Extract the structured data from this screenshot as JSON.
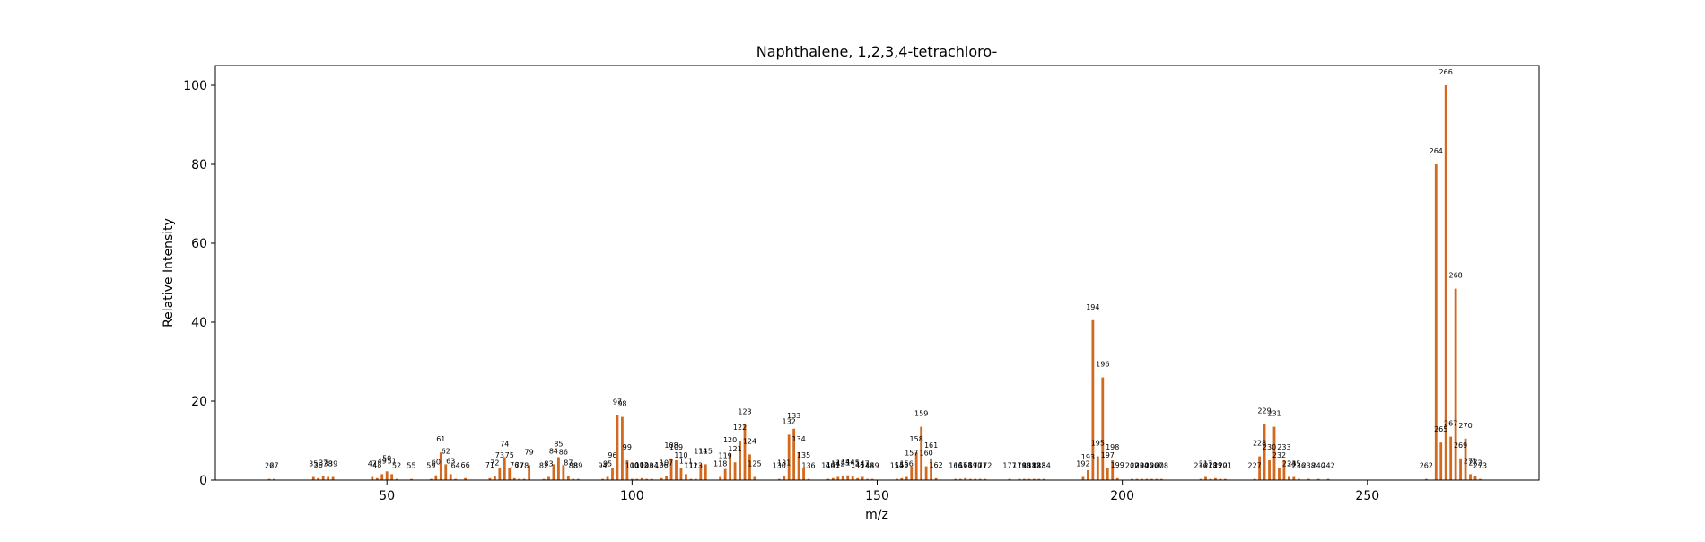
{
  "chart_data": {
    "type": "bar",
    "title": "Naphthalene, 1,2,3,4-tetrachloro-",
    "xlabel": "m/z",
    "ylabel": "Relative Intensity",
    "xlim": [
      15,
      285
    ],
    "ylim": [
      0,
      105
    ],
    "xticks": [
      50,
      100,
      150,
      200,
      250
    ],
    "yticks": [
      0,
      20,
      40,
      60,
      80,
      100
    ],
    "grid": false,
    "bar_color": "#d2691e",
    "series": [
      {
        "values": [
          {
            "x": 26,
            "y": 0.3,
            "label": "26"
          },
          {
            "x": 27,
            "y": 0.3,
            "label": "27"
          },
          {
            "x": 35,
            "y": 0.8,
            "label": "35"
          },
          {
            "x": 36,
            "y": 0.5,
            "label": "36"
          },
          {
            "x": 37,
            "y": 1.0,
            "label": "37"
          },
          {
            "x": 38,
            "y": 0.8,
            "label": "38"
          },
          {
            "x": 39,
            "y": 0.8,
            "label": "39"
          },
          {
            "x": 47,
            "y": 0.8,
            "label": "47"
          },
          {
            "x": 48,
            "y": 0.5,
            "label": "48"
          },
          {
            "x": 49,
            "y": 1.5,
            "label": "49"
          },
          {
            "x": 50,
            "y": 2.2,
            "label": "50"
          },
          {
            "x": 51,
            "y": 1.5,
            "label": "51"
          },
          {
            "x": 52,
            "y": 0.3,
            "label": "52"
          },
          {
            "x": 55,
            "y": 0.3,
            "label": "55"
          },
          {
            "x": 59,
            "y": 0.3,
            "label": "59"
          },
          {
            "x": 60,
            "y": 1.2,
            "label": "60"
          },
          {
            "x": 61,
            "y": 7.0,
            "label": "61"
          },
          {
            "x": 62,
            "y": 4.0,
            "label": "62"
          },
          {
            "x": 63,
            "y": 1.5,
            "label": "63"
          },
          {
            "x": 64,
            "y": 0.3,
            "label": "64"
          },
          {
            "x": 66,
            "y": 0.5,
            "label": "66"
          },
          {
            "x": 71,
            "y": 0.5,
            "label": "71"
          },
          {
            "x": 72,
            "y": 1.0,
            "label": "72"
          },
          {
            "x": 73,
            "y": 3.0,
            "label": "73"
          },
          {
            "x": 74,
            "y": 5.8,
            "label": "74"
          },
          {
            "x": 75,
            "y": 3.0,
            "label": "75"
          },
          {
            "x": 76,
            "y": 0.5,
            "label": "76"
          },
          {
            "x": 77,
            "y": 0.3,
            "label": "77"
          },
          {
            "x": 78,
            "y": 0.3,
            "label": "78"
          },
          {
            "x": 79,
            "y": 3.8,
            "label": "79"
          },
          {
            "x": 82,
            "y": 0.3,
            "label": "82"
          },
          {
            "x": 83,
            "y": 0.8,
            "label": "83"
          },
          {
            "x": 84,
            "y": 4.0,
            "label": "84"
          },
          {
            "x": 85,
            "y": 5.8,
            "label": "85"
          },
          {
            "x": 86,
            "y": 3.8,
            "label": "86"
          },
          {
            "x": 87,
            "y": 1.0,
            "label": "87"
          },
          {
            "x": 88,
            "y": 0.3,
            "label": "88"
          },
          {
            "x": 89,
            "y": 0.3,
            "label": "89"
          },
          {
            "x": 94,
            "y": 0.3,
            "label": "94"
          },
          {
            "x": 95,
            "y": 0.8,
            "label": "95"
          },
          {
            "x": 96,
            "y": 3.0,
            "label": "96"
          },
          {
            "x": 97,
            "y": 16.5,
            "label": "97"
          },
          {
            "x": 98,
            "y": 16.0,
            "label": "98"
          },
          {
            "x": 99,
            "y": 5.0,
            "label": "99"
          },
          {
            "x": 100,
            "y": 0.3,
            "label": "100"
          },
          {
            "x": 101,
            "y": 0.3,
            "label": "101"
          },
          {
            "x": 102,
            "y": 0.5,
            "label": "102"
          },
          {
            "x": 103,
            "y": 0.3,
            "label": "103"
          },
          {
            "x": 104,
            "y": 0.3,
            "label": "104"
          },
          {
            "x": 106,
            "y": 0.5,
            "label": "106"
          },
          {
            "x": 107,
            "y": 1.0,
            "label": "107"
          },
          {
            "x": 108,
            "y": 5.5,
            "label": "108"
          },
          {
            "x": 109,
            "y": 5.0,
            "label": "109"
          },
          {
            "x": 110,
            "y": 3.0,
            "label": "110"
          },
          {
            "x": 111,
            "y": 1.5,
            "label": "111"
          },
          {
            "x": 112,
            "y": 0.3,
            "label": "112"
          },
          {
            "x": 113,
            "y": 0.3,
            "label": "113"
          },
          {
            "x": 114,
            "y": 4.0,
            "label": "114"
          },
          {
            "x": 115,
            "y": 4.0,
            "label": "115"
          },
          {
            "x": 118,
            "y": 0.8,
            "label": "118"
          },
          {
            "x": 119,
            "y": 2.8,
            "label": "119"
          },
          {
            "x": 120,
            "y": 6.8,
            "label": "120"
          },
          {
            "x": 121,
            "y": 4.5,
            "label": "121"
          },
          {
            "x": 122,
            "y": 10.0,
            "label": "122"
          },
          {
            "x": 123,
            "y": 14.0,
            "label": "123"
          },
          {
            "x": 124,
            "y": 6.5,
            "label": "124"
          },
          {
            "x": 125,
            "y": 0.8,
            "label": "125"
          },
          {
            "x": 130,
            "y": 0.3,
            "label": "130"
          },
          {
            "x": 131,
            "y": 1.0,
            "label": "131"
          },
          {
            "x": 132,
            "y": 11.5,
            "label": "132"
          },
          {
            "x": 133,
            "y": 13.0,
            "label": "133"
          },
          {
            "x": 134,
            "y": 7.0,
            "label": "134"
          },
          {
            "x": 135,
            "y": 3.0,
            "label": "135"
          },
          {
            "x": 136,
            "y": 0.3,
            "label": "136"
          },
          {
            "x": 140,
            "y": 0.3,
            "label": "140"
          },
          {
            "x": 141,
            "y": 0.5,
            "label": "141"
          },
          {
            "x": 142,
            "y": 0.8,
            "label": "142"
          },
          {
            "x": 143,
            "y": 1.0,
            "label": "143"
          },
          {
            "x": 144,
            "y": 1.2,
            "label": "144"
          },
          {
            "x": 145,
            "y": 1.0,
            "label": "145"
          },
          {
            "x": 146,
            "y": 0.5,
            "label": "146"
          },
          {
            "x": 147,
            "y": 0.8,
            "label": "147"
          },
          {
            "x": 148,
            "y": 0.3,
            "label": "148"
          },
          {
            "x": 149,
            "y": 0.3,
            "label": "149"
          },
          {
            "x": 154,
            "y": 0.3,
            "label": "154"
          },
          {
            "x": 155,
            "y": 0.5,
            "label": "155"
          },
          {
            "x": 156,
            "y": 0.8,
            "label": "156"
          },
          {
            "x": 157,
            "y": 3.5,
            "label": "157"
          },
          {
            "x": 158,
            "y": 7.0,
            "label": "158"
          },
          {
            "x": 159,
            "y": 13.5,
            "label": "159"
          },
          {
            "x": 160,
            "y": 3.5,
            "label": "160"
          },
          {
            "x": 161,
            "y": 5.5,
            "label": "161"
          },
          {
            "x": 162,
            "y": 0.5,
            "label": "162"
          },
          {
            "x": 166,
            "y": 0.3,
            "label": "166"
          },
          {
            "x": 167,
            "y": 0.3,
            "label": "167"
          },
          {
            "x": 168,
            "y": 0.5,
            "label": "168"
          },
          {
            "x": 169,
            "y": 0.3,
            "label": "169"
          },
          {
            "x": 170,
            "y": 0.3,
            "label": "170"
          },
          {
            "x": 171,
            "y": 0.3,
            "label": "171"
          },
          {
            "x": 172,
            "y": 0.3,
            "label": "172"
          },
          {
            "x": 177,
            "y": 0.3,
            "label": "177"
          },
          {
            "x": 179,
            "y": 0.3,
            "label": "179"
          },
          {
            "x": 180,
            "y": 0.3,
            "label": "180"
          },
          {
            "x": 181,
            "y": 0.3,
            "label": "181"
          },
          {
            "x": 182,
            "y": 0.3,
            "label": "182"
          },
          {
            "x": 183,
            "y": 0.3,
            "label": "183"
          },
          {
            "x": 184,
            "y": 0.3,
            "label": "184"
          },
          {
            "x": 192,
            "y": 0.8,
            "label": "192"
          },
          {
            "x": 193,
            "y": 2.5,
            "label": "193"
          },
          {
            "x": 194,
            "y": 40.5,
            "label": "194"
          },
          {
            "x": 195,
            "y": 6.0,
            "label": "195"
          },
          {
            "x": 196,
            "y": 26.0,
            "label": "196"
          },
          {
            "x": 197,
            "y": 3.0,
            "label": "197"
          },
          {
            "x": 198,
            "y": 5.0,
            "label": "198"
          },
          {
            "x": 199,
            "y": 0.5,
            "label": "199"
          },
          {
            "x": 202,
            "y": 0.3,
            "label": "202"
          },
          {
            "x": 203,
            "y": 0.3,
            "label": "203"
          },
          {
            "x": 204,
            "y": 0.3,
            "label": "204"
          },
          {
            "x": 205,
            "y": 0.3,
            "label": "205"
          },
          {
            "x": 206,
            "y": 0.3,
            "label": "206"
          },
          {
            "x": 207,
            "y": 0.3,
            "label": "207"
          },
          {
            "x": 208,
            "y": 0.3,
            "label": "208"
          },
          {
            "x": 216,
            "y": 0.3,
            "label": "216"
          },
          {
            "x": 217,
            "y": 0.8,
            "label": "217"
          },
          {
            "x": 218,
            "y": 0.3,
            "label": "218"
          },
          {
            "x": 219,
            "y": 0.5,
            "label": "219"
          },
          {
            "x": 220,
            "y": 0.3,
            "label": "220"
          },
          {
            "x": 221,
            "y": 0.3,
            "label": "221"
          },
          {
            "x": 227,
            "y": 0.3,
            "label": "227"
          },
          {
            "x": 228,
            "y": 6.0,
            "label": "228"
          },
          {
            "x": 229,
            "y": 14.2,
            "label": "229"
          },
          {
            "x": 230,
            "y": 5.0,
            "label": "230"
          },
          {
            "x": 231,
            "y": 13.5,
            "label": "231"
          },
          {
            "x": 232,
            "y": 3.0,
            "label": "232"
          },
          {
            "x": 233,
            "y": 5.0,
            "label": "233"
          },
          {
            "x": 234,
            "y": 0.8,
            "label": "234"
          },
          {
            "x": 235,
            "y": 0.8,
            "label": "235"
          },
          {
            "x": 236,
            "y": 0.3,
            "label": "236"
          },
          {
            "x": 238,
            "y": 0.3,
            "label": "238"
          },
          {
            "x": 240,
            "y": 0.3,
            "label": "240"
          },
          {
            "x": 242,
            "y": 0.3,
            "label": "242"
          },
          {
            "x": 262,
            "y": 0.3,
            "label": "262"
          },
          {
            "x": 264,
            "y": 80.0,
            "label": "264"
          },
          {
            "x": 265,
            "y": 9.5,
            "label": "265"
          },
          {
            "x": 266,
            "y": 100.0,
            "label": "266"
          },
          {
            "x": 267,
            "y": 11.0,
            "label": "267"
          },
          {
            "x": 268,
            "y": 48.5,
            "label": "268"
          },
          {
            "x": 269,
            "y": 5.5,
            "label": "269"
          },
          {
            "x": 270,
            "y": 10.5,
            "label": "270"
          },
          {
            "x": 271,
            "y": 1.5,
            "label": "271"
          },
          {
            "x": 272,
            "y": 1.0,
            "label": "272"
          },
          {
            "x": 273,
            "y": 0.3,
            "label": "273"
          }
        ]
      }
    ]
  }
}
